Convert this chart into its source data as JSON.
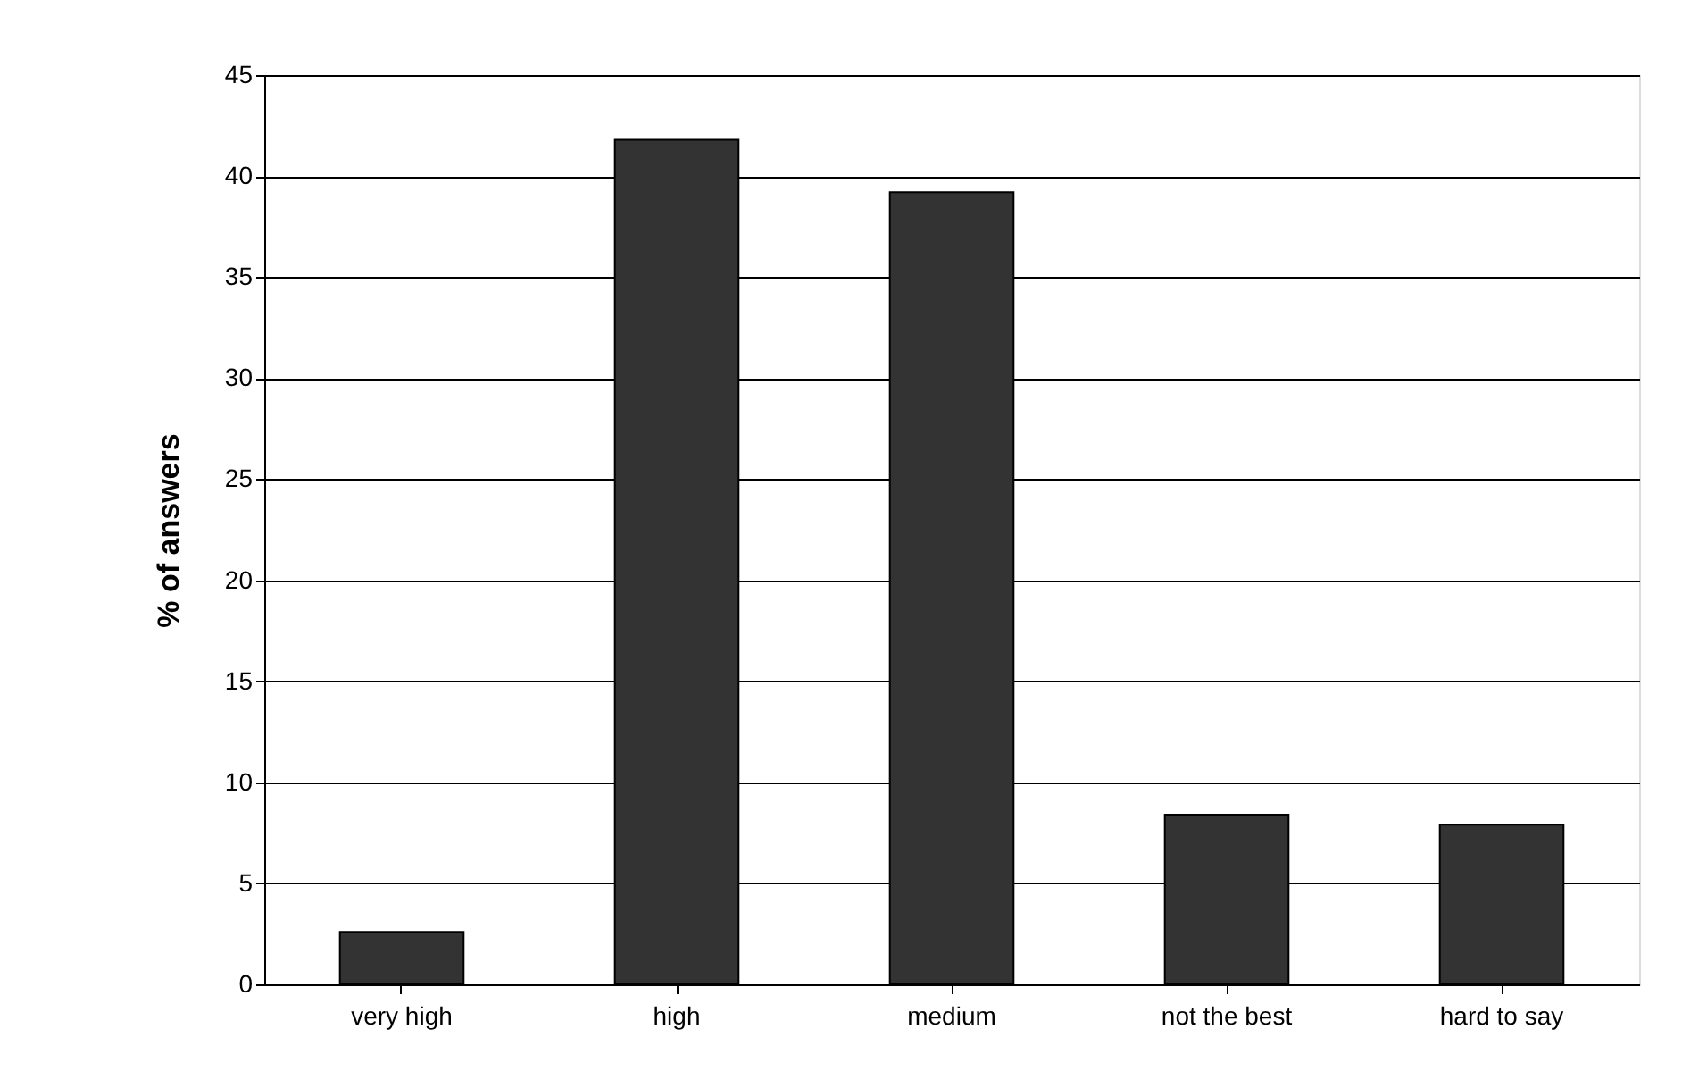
{
  "chart_data": {
    "type": "bar",
    "ylabel": "% of answers",
    "categories": [
      "very high",
      "high",
      "medium",
      "not the best",
      "hard to say"
    ],
    "values": [
      2.6,
      41.8,
      39.2,
      8.4,
      7.9
    ],
    "color": "#333333",
    "ylim": [
      0,
      45
    ],
    "yticks": [
      0,
      5,
      10,
      15,
      20,
      25,
      30,
      35,
      40,
      45
    ],
    "grid": "y"
  }
}
